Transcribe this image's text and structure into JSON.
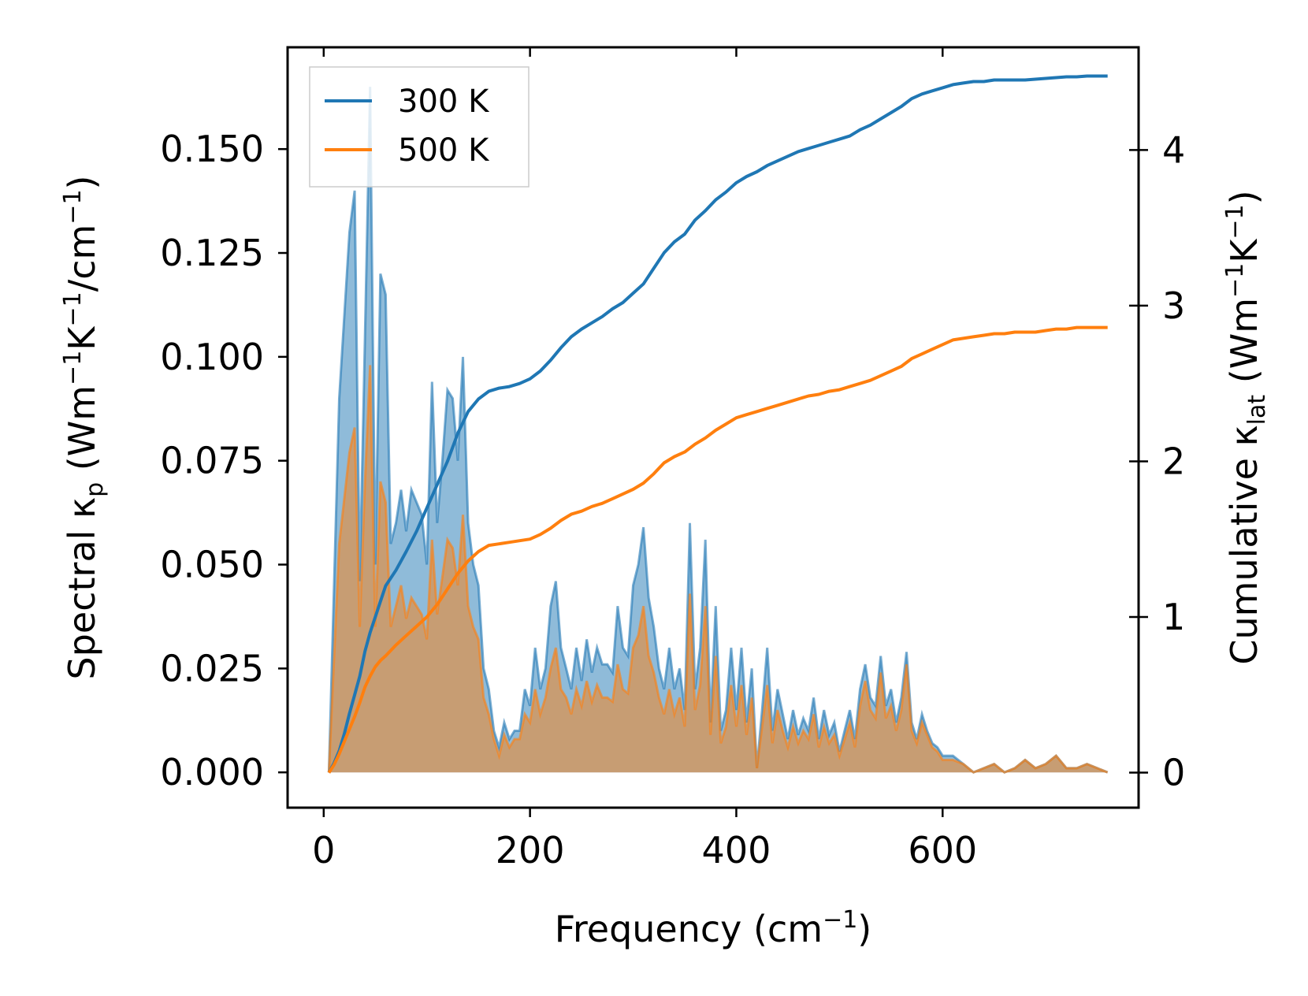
{
  "chart_data": {
    "type": "line",
    "x_axis": {
      "label_main": "Frequency (cm",
      "label_sup": "−1",
      "label_end": ")",
      "xlim": [
        -35,
        790
      ],
      "ticks": [
        0,
        200,
        400,
        600
      ],
      "tick_labels": [
        "0",
        "200",
        "400",
        "600"
      ]
    },
    "y_left": {
      "label_main": "Spectral κ",
      "label_sub": "p",
      "label_units_open": " (Wm",
      "label_sup1": "−1",
      "label_k": "K",
      "label_sup2": "−1",
      "label_cm": "/cm",
      "label_sup3": "−1",
      "label_close": ")",
      "ylim": [
        -0.0085,
        0.1745
      ],
      "ticks": [
        0,
        0.025,
        0.05,
        0.075,
        0.1,
        0.125,
        0.15
      ],
      "tick_labels": [
        "0.000",
        "0.025",
        "0.050",
        "0.075",
        "0.100",
        "0.125",
        "0.150"
      ]
    },
    "y_right": {
      "label_main": "Cumulative κ",
      "label_sub": "lat",
      "label_units_open": " (Wm",
      "label_sup1": "−1",
      "label_k": "K",
      "label_sup2": "−1",
      "label_close": ")",
      "ylim": [
        -0.225,
        4.66
      ],
      "ticks": [
        0,
        1,
        2,
        3,
        4
      ],
      "tick_labels": [
        "0",
        "1",
        "2",
        "3",
        "4"
      ]
    },
    "legend": {
      "position": "top-left",
      "entries": [
        "300 K",
        "500 K"
      ]
    },
    "series": [
      {
        "name": "300 K",
        "color": "#1f77b4",
        "fill_color": "#1f77b4",
        "spectral_x": [
          5,
          15,
          25,
          30,
          35,
          40,
          45,
          50,
          55,
          60,
          65,
          70,
          75,
          80,
          85,
          90,
          95,
          100,
          105,
          110,
          115,
          120,
          125,
          130,
          135,
          140,
          145,
          150,
          155,
          160,
          165,
          170,
          175,
          180,
          185,
          190,
          195,
          200,
          205,
          210,
          215,
          220,
          225,
          230,
          235,
          240,
          245,
          250,
          255,
          260,
          265,
          270,
          275,
          280,
          285,
          290,
          295,
          300,
          305,
          310,
          315,
          320,
          325,
          330,
          335,
          340,
          345,
          350,
          355,
          360,
          365,
          370,
          375,
          380,
          385,
          390,
          395,
          400,
          405,
          410,
          415,
          420,
          425,
          430,
          435,
          440,
          445,
          450,
          455,
          460,
          465,
          470,
          475,
          480,
          485,
          490,
          495,
          500,
          505,
          510,
          515,
          520,
          525,
          530,
          535,
          540,
          545,
          550,
          555,
          560,
          565,
          570,
          575,
          580,
          585,
          590,
          595,
          600,
          610,
          620,
          630,
          640,
          650,
          660,
          670,
          680,
          690,
          700,
          710,
          720,
          730,
          740,
          750,
          760
        ],
        "spectral_y": [
          0.0,
          0.09,
          0.13,
          0.14,
          0.046,
          0.105,
          0.165,
          0.05,
          0.12,
          0.115,
          0.055,
          0.06,
          0.068,
          0.058,
          0.068,
          0.065,
          0.062,
          0.05,
          0.094,
          0.06,
          0.075,
          0.092,
          0.09,
          0.075,
          0.1,
          0.06,
          0.05,
          0.045,
          0.025,
          0.02,
          0.01,
          0.006,
          0.012,
          0.008,
          0.01,
          0.01,
          0.02,
          0.016,
          0.03,
          0.02,
          0.025,
          0.04,
          0.046,
          0.03,
          0.025,
          0.02,
          0.03,
          0.022,
          0.032,
          0.024,
          0.03,
          0.026,
          0.026,
          0.024,
          0.04,
          0.03,
          0.028,
          0.045,
          0.05,
          0.059,
          0.042,
          0.035,
          0.025,
          0.02,
          0.03,
          0.02,
          0.025,
          0.015,
          0.06,
          0.02,
          0.03,
          0.056,
          0.012,
          0.04,
          0.01,
          0.015,
          0.03,
          0.015,
          0.03,
          0.012,
          0.025,
          0.001,
          0.015,
          0.03,
          0.01,
          0.02,
          0.014,
          0.008,
          0.015,
          0.009,
          0.013,
          0.01,
          0.018,
          0.008,
          0.015,
          0.009,
          0.012,
          0.005,
          0.01,
          0.015,
          0.008,
          0.02,
          0.026,
          0.018,
          0.016,
          0.028,
          0.016,
          0.02,
          0.012,
          0.018,
          0.029,
          0.012,
          0.008,
          0.014,
          0.01,
          0.007,
          0.006,
          0.004,
          0.004,
          0.002,
          0.0,
          0.001,
          0.002,
          0.0,
          0.001,
          0.003,
          0.001,
          0.002,
          0.004,
          0.001,
          0.001,
          0.002,
          0.001,
          0.0
        ],
        "cum_x": [
          5,
          10,
          15,
          20,
          25,
          30,
          35,
          40,
          45,
          50,
          55,
          60,
          70,
          80,
          90,
          100,
          110,
          120,
          130,
          140,
          150,
          160,
          170,
          180,
          190,
          200,
          210,
          220,
          230,
          240,
          250,
          260,
          270,
          280,
          290,
          300,
          310,
          320,
          330,
          340,
          350,
          360,
          370,
          380,
          390,
          400,
          410,
          420,
          430,
          440,
          450,
          460,
          470,
          480,
          490,
          500,
          510,
          520,
          530,
          540,
          550,
          560,
          570,
          580,
          590,
          600,
          610,
          620,
          630,
          640,
          650,
          660,
          670,
          680,
          690,
          700,
          710,
          720,
          730,
          740,
          750,
          760
        ],
        "cum_y": [
          0.0,
          0.06,
          0.14,
          0.25,
          0.38,
          0.5,
          0.62,
          0.78,
          0.9,
          1.0,
          1.1,
          1.2,
          1.3,
          1.42,
          1.55,
          1.7,
          1.85,
          2.0,
          2.18,
          2.32,
          2.4,
          2.45,
          2.47,
          2.48,
          2.5,
          2.53,
          2.58,
          2.65,
          2.73,
          2.8,
          2.85,
          2.89,
          2.93,
          2.98,
          3.02,
          3.08,
          3.14,
          3.24,
          3.34,
          3.41,
          3.46,
          3.55,
          3.61,
          3.68,
          3.73,
          3.79,
          3.83,
          3.86,
          3.9,
          3.93,
          3.96,
          3.99,
          4.01,
          4.03,
          4.05,
          4.07,
          4.09,
          4.13,
          4.16,
          4.2,
          4.24,
          4.28,
          4.33,
          4.36,
          4.38,
          4.4,
          4.42,
          4.43,
          4.44,
          4.44,
          4.45,
          4.45,
          4.45,
          4.45,
          4.455,
          4.46,
          4.465,
          4.47,
          4.47,
          4.475,
          4.475,
          4.475
        ]
      },
      {
        "name": "500 K",
        "color": "#ff7f0e",
        "fill_color": "#ff7f0e",
        "spectral_x": [
          5,
          15,
          25,
          30,
          35,
          40,
          45,
          50,
          55,
          60,
          65,
          70,
          75,
          80,
          85,
          90,
          95,
          100,
          105,
          110,
          115,
          120,
          125,
          130,
          135,
          140,
          145,
          150,
          155,
          160,
          165,
          170,
          175,
          180,
          185,
          190,
          195,
          200,
          205,
          210,
          215,
          220,
          225,
          230,
          235,
          240,
          245,
          250,
          255,
          260,
          265,
          270,
          275,
          280,
          285,
          290,
          295,
          300,
          305,
          310,
          315,
          320,
          325,
          330,
          335,
          340,
          345,
          350,
          355,
          360,
          365,
          370,
          375,
          380,
          385,
          390,
          395,
          400,
          405,
          410,
          415,
          420,
          425,
          430,
          435,
          440,
          445,
          450,
          455,
          460,
          465,
          470,
          475,
          480,
          485,
          490,
          495,
          500,
          505,
          510,
          515,
          520,
          525,
          530,
          535,
          540,
          545,
          550,
          555,
          560,
          565,
          570,
          575,
          580,
          585,
          590,
          595,
          600,
          610,
          620,
          630,
          640,
          650,
          660,
          670,
          680,
          690,
          700,
          710,
          720,
          730,
          740,
          750,
          760
        ],
        "spectral_y": [
          0.0,
          0.055,
          0.077,
          0.083,
          0.035,
          0.07,
          0.098,
          0.035,
          0.07,
          0.065,
          0.035,
          0.04,
          0.045,
          0.037,
          0.042,
          0.04,
          0.038,
          0.032,
          0.056,
          0.038,
          0.047,
          0.056,
          0.054,
          0.045,
          0.062,
          0.04,
          0.035,
          0.032,
          0.018,
          0.014,
          0.008,
          0.004,
          0.009,
          0.006,
          0.008,
          0.008,
          0.014,
          0.012,
          0.02,
          0.014,
          0.018,
          0.025,
          0.03,
          0.02,
          0.018,
          0.014,
          0.02,
          0.016,
          0.022,
          0.017,
          0.021,
          0.018,
          0.018,
          0.017,
          0.026,
          0.02,
          0.019,
          0.03,
          0.033,
          0.04,
          0.028,
          0.024,
          0.018,
          0.014,
          0.02,
          0.014,
          0.018,
          0.011,
          0.043,
          0.015,
          0.021,
          0.04,
          0.009,
          0.028,
          0.007,
          0.011,
          0.021,
          0.011,
          0.021,
          0.009,
          0.018,
          0.001,
          0.011,
          0.021,
          0.007,
          0.015,
          0.01,
          0.006,
          0.011,
          0.007,
          0.01,
          0.008,
          0.014,
          0.006,
          0.011,
          0.007,
          0.009,
          0.004,
          0.008,
          0.012,
          0.006,
          0.016,
          0.022,
          0.015,
          0.013,
          0.024,
          0.013,
          0.016,
          0.01,
          0.015,
          0.026,
          0.01,
          0.007,
          0.012,
          0.009,
          0.006,
          0.005,
          0.003,
          0.003,
          0.002,
          0.0,
          0.001,
          0.002,
          0.0,
          0.001,
          0.003,
          0.001,
          0.002,
          0.004,
          0.001,
          0.001,
          0.002,
          0.001,
          0.0
        ],
        "cum_x": [
          5,
          10,
          15,
          20,
          25,
          30,
          35,
          40,
          45,
          50,
          55,
          60,
          70,
          80,
          90,
          100,
          110,
          120,
          130,
          140,
          150,
          160,
          170,
          180,
          190,
          200,
          210,
          220,
          230,
          240,
          250,
          260,
          270,
          280,
          290,
          300,
          310,
          320,
          330,
          340,
          350,
          360,
          370,
          380,
          390,
          400,
          410,
          420,
          430,
          440,
          450,
          460,
          470,
          480,
          490,
          500,
          510,
          520,
          530,
          540,
          550,
          560,
          570,
          580,
          590,
          600,
          610,
          620,
          630,
          640,
          650,
          660,
          670,
          680,
          690,
          700,
          710,
          720,
          730,
          740,
          750,
          760
        ],
        "cum_y": [
          0.0,
          0.05,
          0.12,
          0.2,
          0.28,
          0.36,
          0.45,
          0.55,
          0.62,
          0.68,
          0.72,
          0.75,
          0.82,
          0.88,
          0.94,
          1.0,
          1.08,
          1.18,
          1.28,
          1.36,
          1.42,
          1.46,
          1.47,
          1.48,
          1.49,
          1.5,
          1.53,
          1.57,
          1.62,
          1.66,
          1.68,
          1.71,
          1.73,
          1.76,
          1.79,
          1.82,
          1.86,
          1.92,
          1.99,
          2.03,
          2.06,
          2.11,
          2.15,
          2.2,
          2.24,
          2.28,
          2.3,
          2.32,
          2.34,
          2.36,
          2.38,
          2.4,
          2.42,
          2.43,
          2.45,
          2.46,
          2.48,
          2.5,
          2.52,
          2.55,
          2.58,
          2.61,
          2.66,
          2.69,
          2.72,
          2.75,
          2.78,
          2.79,
          2.8,
          2.81,
          2.82,
          2.82,
          2.83,
          2.83,
          2.83,
          2.84,
          2.85,
          2.85,
          2.86,
          2.86,
          2.86,
          2.86
        ]
      }
    ]
  }
}
